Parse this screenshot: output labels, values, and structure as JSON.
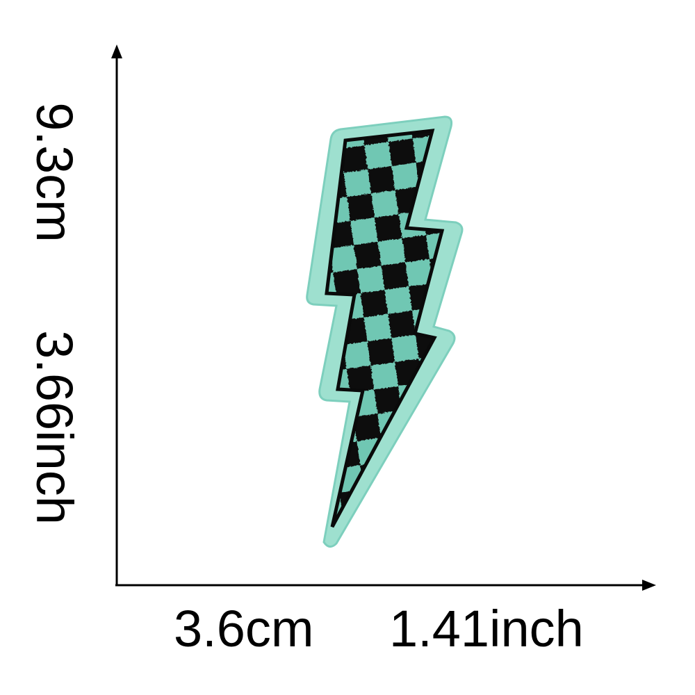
{
  "dimensions": {
    "height_cm": "9.3cm",
    "height_inch": "3.66inch",
    "width_cm": "3.6cm",
    "width_inch": "1.41inch"
  },
  "product": {
    "icon": "lightning-bolt-patch-icon",
    "colors": {
      "mint": "#6fc7b3",
      "mint_border": "#9ee0cf",
      "black": "#111111"
    }
  }
}
